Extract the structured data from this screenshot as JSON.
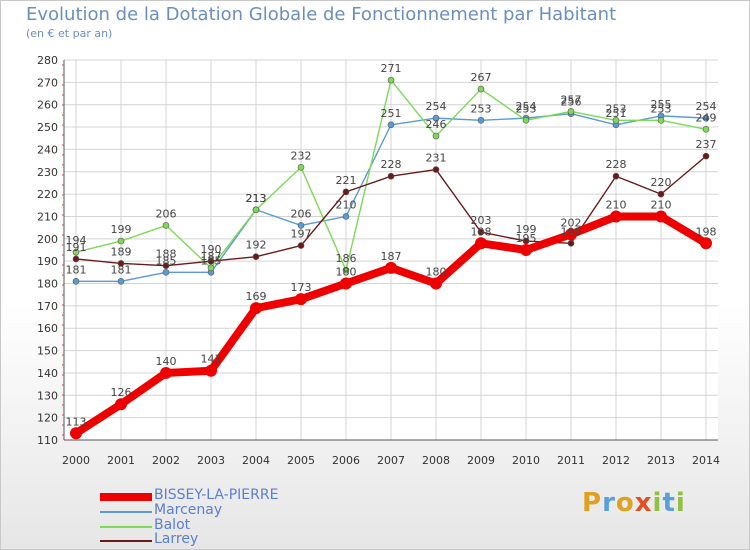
{
  "chart_data": {
    "type": "line",
    "title": "Evolution de la Dotation Globale de Fonctionnement par Habitant",
    "subtitle": "(en € et par an)",
    "x": [
      "2000",
      "2001",
      "2002",
      "2003",
      "2004",
      "2005",
      "2006",
      "2007",
      "2008",
      "2009",
      "2010",
      "2011",
      "2012",
      "2013",
      "2014"
    ],
    "ylim": [
      110,
      280
    ],
    "yticks": [
      110,
      120,
      130,
      140,
      150,
      160,
      170,
      180,
      190,
      200,
      210,
      220,
      230,
      240,
      250,
      260,
      270,
      280
    ],
    "series": [
      {
        "name": "BISSEY-LA-PIERRE",
        "color": "#ee0000",
        "values": [
          113,
          126,
          140,
          141,
          169,
          173,
          180,
          187,
          180,
          198,
          195,
          202,
          210,
          210,
          198
        ],
        "labels": [
          "113",
          "126",
          "140",
          "141",
          "169",
          "173",
          "180",
          "187",
          "180",
          "198",
          "195",
          "202",
          "210",
          "210",
          "198"
        ]
      },
      {
        "name": "Marcenay",
        "color": "#5b9bd5",
        "values": [
          181,
          181,
          185,
          185,
          213,
          206,
          210,
          251,
          254,
          253,
          254,
          256,
          251,
          255,
          254
        ],
        "labels": [
          "181",
          "181",
          "185",
          "185",
          "213",
          "206",
          "210",
          "251",
          "254",
          "253",
          "254",
          "256",
          "251",
          "255",
          "254"
        ]
      },
      {
        "name": "Balot",
        "color": "#7ed957",
        "values": [
          194,
          199,
          206,
          187,
          213,
          232,
          186,
          271,
          246,
          267,
          253,
          257,
          253,
          253,
          249
        ],
        "labels": [
          "194",
          "199",
          "206",
          "187",
          "213",
          "232",
          "186",
          "271",
          "246",
          "267",
          "253",
          "257",
          "253",
          "253",
          "249"
        ]
      },
      {
        "name": "Larrey",
        "color": "#6b1a1a",
        "values": [
          191,
          189,
          188,
          190,
          192,
          197,
          221,
          228,
          231,
          203,
          199,
          198,
          228,
          220,
          237
        ],
        "labels": [
          "191",
          "189",
          "188",
          "190",
          "192",
          "197",
          "221",
          "228",
          "231",
          "203",
          "199",
          "198",
          "228",
          "220",
          "237"
        ]
      }
    ]
  },
  "legend": {
    "items": [
      "BISSEY-LA-PIERRE",
      "Marcenay",
      "Balot",
      "Larrey"
    ],
    "colors": [
      "#ee0000",
      "#5b9bd5",
      "#7ed957",
      "#6b1a1a"
    ]
  },
  "logo": {
    "p": "P",
    "r": "r",
    "o": "o",
    "x": "x",
    "i": "i",
    "t": "t",
    "i2": "i"
  }
}
